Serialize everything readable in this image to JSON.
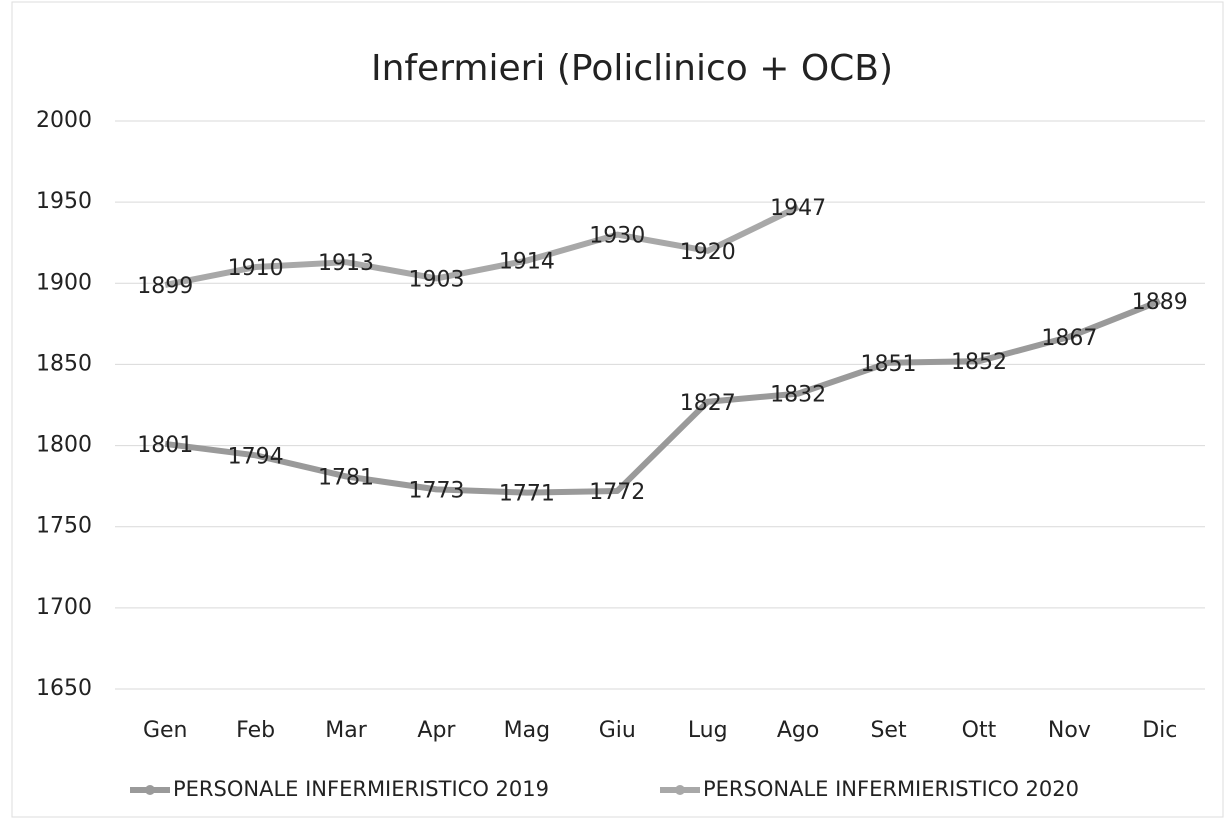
{
  "chart_data": {
    "type": "line",
    "title": "Infermieri (Policlinico + OCB)",
    "categories": [
      "Gen",
      "Feb",
      "Mar",
      "Apr",
      "Mag",
      "Giu",
      "Lug",
      "Ago",
      "Set",
      "Ott",
      "Nov",
      "Dic"
    ],
    "series": [
      {
        "name": "PERSONALE INFERMIERISTICO 2019",
        "color": "#9a9a9a",
        "values": [
          1801,
          1794,
          1781,
          1773,
          1771,
          1772,
          1827,
          1832,
          1851,
          1852,
          1867,
          1889
        ]
      },
      {
        "name": "PERSONALE INFERMIERISTICO 2020",
        "color": "#a8a8a8",
        "values": [
          1899,
          1910,
          1913,
          1903,
          1914,
          1930,
          1920,
          1947,
          null,
          null,
          null,
          null
        ]
      }
    ],
    "ylim": [
      1650,
      2000
    ],
    "yticks": [
      1650,
      1700,
      1750,
      1800,
      1850,
      1900,
      1950,
      2000
    ],
    "grid": true,
    "legend": "bottom"
  }
}
